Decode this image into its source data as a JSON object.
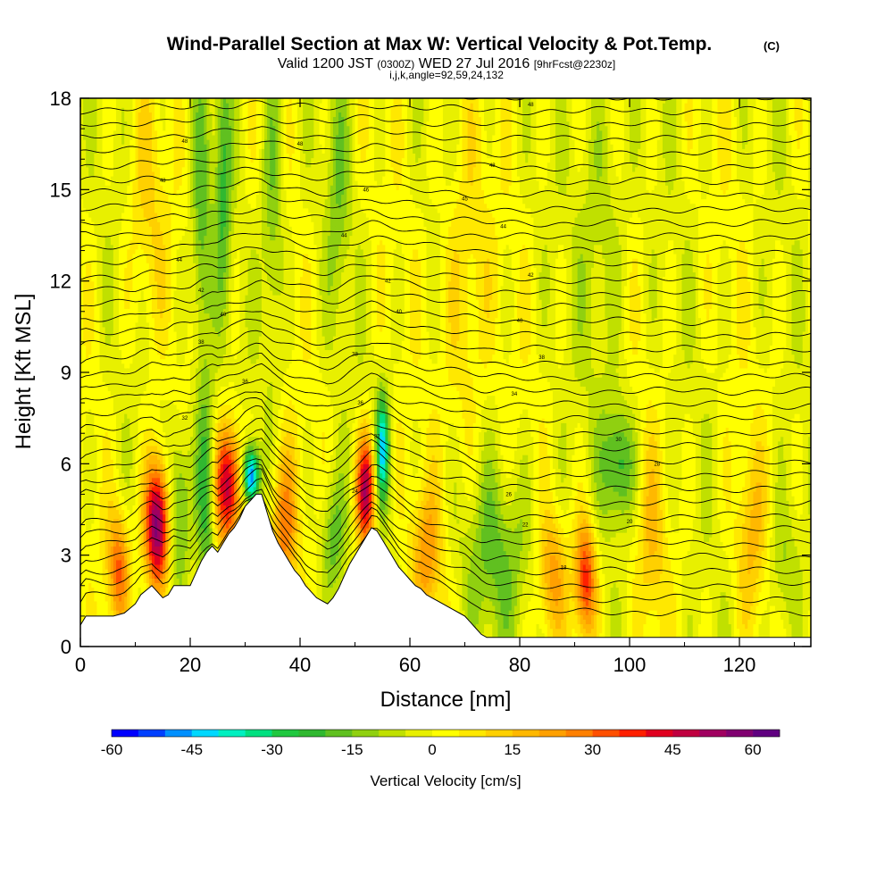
{
  "header": {
    "title": "Wind-Parallel Section at Max W: Vertical Velocity & Pot.Temp.",
    "title_tag": "(C)",
    "valid_prefix": "Valid 1200 JST",
    "valid_utc": "(0300Z)",
    "valid_date": "WED 27 Jul 2016",
    "forecast_info": "[9hrFcst@2230z]",
    "indices": "i,j,k,angle=92,59,24,132"
  },
  "chart_data": {
    "type": "heatmap",
    "xlabel": "Distance [nm]",
    "ylabel": "Height [Kft MSL]",
    "xlim": [
      0,
      133
    ],
    "ylim": [
      0,
      18
    ],
    "x_ticks": [
      0,
      20,
      40,
      60,
      80,
      100,
      120
    ],
    "y_ticks": [
      0,
      3,
      6,
      9,
      12,
      15,
      18
    ],
    "grid": false,
    "colorbar": {
      "title": "Vertical Velocity [cm/s]",
      "tick_labels": [
        "-60",
        "-45",
        "-30",
        "-15",
        "0",
        "15",
        "30",
        "45",
        "60"
      ],
      "bin_edges_min": -60,
      "bin_width": 5,
      "colors": [
        "#0000ff",
        "#0040ff",
        "#0090ff",
        "#00d8ff",
        "#00f0c0",
        "#00e080",
        "#20c840",
        "#30b830",
        "#60c020",
        "#90d010",
        "#c0e000",
        "#e8f000",
        "#ffff00",
        "#ffe800",
        "#ffd000",
        "#ffb800",
        "#ffa000",
        "#ff8000",
        "#ff5000",
        "#ff2000",
        "#e00020",
        "#c00040",
        "#a00060",
        "#800070",
        "#600080"
      ],
      "location": "bottom"
    },
    "terrain_profile": {
      "x": [
        0,
        1,
        2,
        6,
        8,
        10,
        11,
        13,
        14,
        15,
        16,
        17,
        18,
        20,
        21,
        22,
        23,
        24,
        25,
        26,
        27,
        28,
        29,
        30,
        31,
        32,
        33,
        34,
        35,
        36,
        37,
        38,
        39,
        40,
        41,
        42,
        43,
        44,
        45,
        46,
        47,
        48,
        49,
        50,
        51,
        52,
        53,
        54,
        55,
        56,
        57,
        58,
        59,
        60,
        61,
        62,
        63,
        64,
        65,
        66,
        67,
        68,
        69,
        70,
        71,
        72,
        73,
        74,
        75,
        133
      ],
      "y": [
        0.7,
        1.0,
        1.0,
        1.0,
        1.1,
        1.4,
        1.7,
        2.0,
        1.8,
        1.6,
        1.7,
        2.0,
        2.0,
        2.0,
        2.4,
        2.8,
        3.1,
        3.3,
        3.1,
        3.4,
        3.7,
        3.9,
        4.2,
        4.6,
        4.8,
        5.0,
        5.0,
        4.4,
        3.8,
        3.4,
        3.1,
        2.8,
        2.5,
        2.3,
        2.0,
        1.8,
        1.6,
        1.5,
        1.4,
        1.6,
        1.9,
        2.3,
        2.7,
        3.0,
        3.3,
        3.6,
        3.9,
        3.8,
        3.5,
        3.2,
        2.9,
        2.6,
        2.4,
        2.2,
        2.0,
        1.9,
        1.7,
        1.6,
        1.5,
        1.4,
        1.3,
        1.2,
        1.1,
        1.0,
        0.8,
        0.6,
        0.4,
        0.3,
        0.3,
        0.3
      ]
    },
    "cells": [
      {
        "x": 14,
        "z": 4.0,
        "w": 62,
        "sx": 1.6,
        "sz": 1.5
      },
      {
        "x": 7,
        "z": 2.6,
        "w": 30,
        "sx": 1.4,
        "sz": 1.3
      },
      {
        "x": 18,
        "z": 4.6,
        "w": -22,
        "sx": 1.5,
        "sz": 1.8
      },
      {
        "x": 23,
        "z": 5.0,
        "w": -28,
        "sx": 1.3,
        "sz": 2.4
      },
      {
        "x": 27,
        "z": 5.3,
        "w": 48,
        "sx": 1.9,
        "sz": 1.4
      },
      {
        "x": 31,
        "z": 5.6,
        "w": -55,
        "sx": 1.1,
        "sz": 0.7
      },
      {
        "x": 37,
        "z": 3.8,
        "w": 28,
        "sx": 1.8,
        "sz": 1.8
      },
      {
        "x": 46,
        "z": 3.5,
        "w": -20,
        "sx": 1.6,
        "sz": 1.5
      },
      {
        "x": 52,
        "z": 5.1,
        "w": 50,
        "sx": 1.3,
        "sz": 1.3
      },
      {
        "x": 55,
        "z": 6.5,
        "w": -40,
        "sx": 0.9,
        "sz": 1.3
      },
      {
        "x": 63,
        "z": 3.0,
        "w": 22,
        "sx": 2.0,
        "sz": 1.5
      },
      {
        "x": 76,
        "z": 3.0,
        "w": -15,
        "sx": 5.0,
        "sz": 2.0
      },
      {
        "x": 86,
        "z": 2.4,
        "w": 22,
        "sx": 1.8,
        "sz": 1.4
      },
      {
        "x": 92,
        "z": 2.2,
        "w": 40,
        "sx": 1.4,
        "sz": 1.4
      },
      {
        "x": 98,
        "z": 6.0,
        "w": -25,
        "sx": 2.0,
        "sz": 1.4
      },
      {
        "x": 104,
        "z": 3.5,
        "w": 12,
        "sx": 2.0,
        "sz": 2.2
      },
      {
        "x": 122,
        "z": 3.5,
        "w": 15,
        "sx": 2.0,
        "sz": 2.0
      },
      {
        "x": 128,
        "z": 2.5,
        "w": -12,
        "sx": 2.0,
        "sz": 1.6
      },
      {
        "x": 22,
        "z": 13.5,
        "w": -18,
        "sx": 1.2,
        "sz": 3.5
      },
      {
        "x": 26,
        "z": 15.5,
        "w": -20,
        "sx": 1.1,
        "sz": 3.0
      },
      {
        "x": 35,
        "z": 14.5,
        "w": -16,
        "sx": 1.4,
        "sz": 4.0
      },
      {
        "x": 47,
        "z": 15.0,
        "w": -12,
        "sx": 1.5,
        "sz": 3.0
      },
      {
        "x": 12,
        "z": 14.0,
        "w": 10,
        "sx": 2.5,
        "sz": 3.0
      },
      {
        "x": 70,
        "z": 11.5,
        "w": 12,
        "sx": 3.0,
        "sz": 4.0
      },
      {
        "x": 95,
        "z": 14.0,
        "w": -10,
        "sx": 3.0,
        "sz": 4.0
      }
    ],
    "theta_contours": {
      "count": 38,
      "labels": [
        {
          "x": 19,
          "y": 16.6,
          "text": "48"
        },
        {
          "x": 15,
          "y": 15.3,
          "text": "48"
        },
        {
          "x": 40,
          "y": 16.5,
          "text": "48"
        },
        {
          "x": 82,
          "y": 17.8,
          "text": "48"
        },
        {
          "x": 75,
          "y": 15.8,
          "text": "48"
        },
        {
          "x": 52,
          "y": 15.0,
          "text": "46"
        },
        {
          "x": 70,
          "y": 14.7,
          "text": "45"
        },
        {
          "x": 77,
          "y": 13.8,
          "text": "44"
        },
        {
          "x": 48,
          "y": 13.5,
          "text": "44"
        },
        {
          "x": 18,
          "y": 12.7,
          "text": "44"
        },
        {
          "x": 56,
          "y": 12.0,
          "text": "42"
        },
        {
          "x": 22,
          "y": 11.7,
          "text": "42"
        },
        {
          "x": 82,
          "y": 12.2,
          "text": "42"
        },
        {
          "x": 26,
          "y": 10.9,
          "text": "40"
        },
        {
          "x": 58,
          "y": 11.0,
          "text": "40"
        },
        {
          "x": 80,
          "y": 10.7,
          "text": "40"
        },
        {
          "x": 22,
          "y": 10.0,
          "text": "38"
        },
        {
          "x": 50,
          "y": 9.6,
          "text": "38"
        },
        {
          "x": 84,
          "y": 9.5,
          "text": "38"
        },
        {
          "x": 30,
          "y": 8.7,
          "text": "36"
        },
        {
          "x": 51,
          "y": 8.0,
          "text": "36"
        },
        {
          "x": 79,
          "y": 8.3,
          "text": "34"
        },
        {
          "x": 19,
          "y": 7.5,
          "text": "32"
        },
        {
          "x": 54,
          "y": 6.9,
          "text": "32"
        },
        {
          "x": 98,
          "y": 6.8,
          "text": "30"
        },
        {
          "x": 105,
          "y": 6.0,
          "text": "28"
        },
        {
          "x": 78,
          "y": 5.0,
          "text": "26"
        },
        {
          "x": 50,
          "y": 5.1,
          "text": "24"
        },
        {
          "x": 81,
          "y": 4.0,
          "text": "22"
        },
        {
          "x": 100,
          "y": 4.1,
          "text": "20"
        },
        {
          "x": 88,
          "y": 2.6,
          "text": "18"
        }
      ]
    }
  }
}
